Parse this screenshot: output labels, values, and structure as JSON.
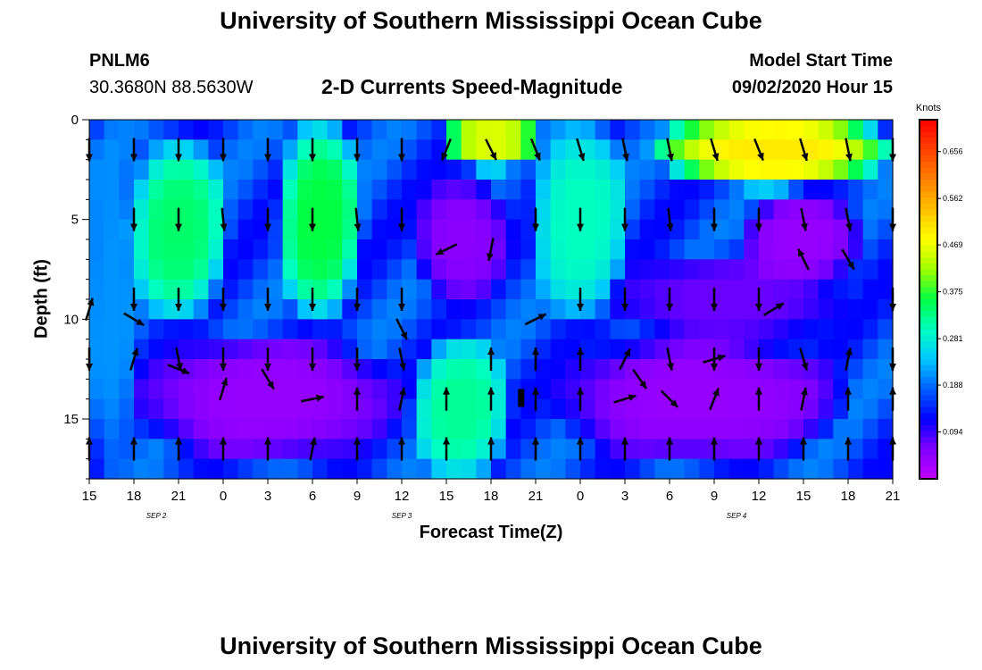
{
  "header": {
    "title": "University of Southern Mississippi Ocean Cube",
    "station_id": "PNLM6",
    "station_coords": "30.3680N 88.5630W",
    "chart_title": "2-D Currents Speed-Magnitude",
    "model_start_label": "Model Start Time",
    "model_start_value": "09/02/2020 Hour 15"
  },
  "footer": {
    "title": "University of Southern Mississippi Ocean Cube"
  },
  "chart_data": {
    "type": "heatmap",
    "title": "2-D Currents Speed-Magnitude",
    "xlabel": "Forecast Time(Z)",
    "ylabel": "Depth (ft)",
    "x_ticks": [
      "15",
      "18",
      "21",
      "0",
      "3",
      "6",
      "9",
      "12",
      "15",
      "18",
      "21",
      "0",
      "3",
      "6",
      "9",
      "12",
      "15",
      "18",
      "21"
    ],
    "date_labels": [
      {
        "label": "SEP 2",
        "hour_index": 4.5
      },
      {
        "label": "SEP 3",
        "hour_index": 21
      },
      {
        "label": "SEP 4",
        "hour_index": 43.5
      }
    ],
    "y_ticks": [
      0,
      5,
      10,
      15
    ],
    "ylim": [
      18,
      0
    ],
    "hours": 54,
    "depth_rows": 18,
    "colorbar": {
      "unit": "Knots",
      "range": [
        0,
        0.72
      ],
      "ticks": [
        "0.656",
        "0.562",
        "0.469",
        "0.375",
        "0.281",
        "0.188",
        "0.094"
      ],
      "tick_values": [
        0.656,
        0.562,
        0.469,
        0.375,
        0.281,
        0.188,
        0.094
      ],
      "colors": [
        "#c000ff",
        "#8000ff",
        "#0000ff",
        "#0060ff",
        "#00c8ff",
        "#00ffc0",
        "#00ff40",
        "#a0ff00",
        "#ffff00",
        "#ffc000",
        "#ff8000",
        "#ff4000",
        "#ff0000"
      ]
    },
    "speed_regions": [
      {
        "h0": 0,
        "h1": 3,
        "d0": 0,
        "d1": 18,
        "v": 0.21
      },
      {
        "h0": 3,
        "h1": 9,
        "d0": 1,
        "d1": 10,
        "v": 0.34
      },
      {
        "h0": 3,
        "h1": 21,
        "d0": 11,
        "d1": 17,
        "v": 0.04
      },
      {
        "h0": 13,
        "h1": 18,
        "d0": 0,
        "d1": 10,
        "v": 0.36
      },
      {
        "h0": 22,
        "h1": 28,
        "d0": 3,
        "d1": 9,
        "v": 0.05
      },
      {
        "h0": 22,
        "h1": 28,
        "d0": 11,
        "d1": 18,
        "v": 0.32
      },
      {
        "h0": 24,
        "h1": 30,
        "d0": 0,
        "d1": 2,
        "v": 0.46
      },
      {
        "h0": 30,
        "h1": 36,
        "d0": 0,
        "d1": 10,
        "v": 0.3
      },
      {
        "h0": 31,
        "h1": 51,
        "d0": 11,
        "d1": 17,
        "v": 0.04
      },
      {
        "h0": 35,
        "h1": 51,
        "d0": 7,
        "d1": 11,
        "v": 0.07
      },
      {
        "h0": 38,
        "h1": 54,
        "d0": 0,
        "d1": 3,
        "v": 0.5
      },
      {
        "h0": 44,
        "h1": 52,
        "d0": 4,
        "d1": 8,
        "v": 0.04
      }
    ],
    "arrows": [
      {
        "t": 0,
        "d": 1.5,
        "dir": [
          0,
          1
        ]
      },
      {
        "t": 3,
        "d": 1.5,
        "dir": [
          0,
          1
        ]
      },
      {
        "t": 6,
        "d": 1.5,
        "dir": [
          0,
          1
        ]
      },
      {
        "t": 9,
        "d": 1.5,
        "dir": [
          0,
          1
        ]
      },
      {
        "t": 12,
        "d": 1.5,
        "dir": [
          0,
          1
        ]
      },
      {
        "t": 15,
        "d": 1.5,
        "dir": [
          0,
          1
        ]
      },
      {
        "t": 18,
        "d": 1.5,
        "dir": [
          0,
          1
        ]
      },
      {
        "t": 21,
        "d": 1.5,
        "dir": [
          0,
          1
        ]
      },
      {
        "t": 24,
        "d": 1.5,
        "dir": [
          -0.4,
          1
        ]
      },
      {
        "t": 27,
        "d": 1.5,
        "dir": [
          0.5,
          1
        ]
      },
      {
        "t": 30,
        "d": 1.5,
        "dir": [
          0.4,
          1
        ]
      },
      {
        "t": 33,
        "d": 1.5,
        "dir": [
          0.3,
          1
        ]
      },
      {
        "t": 36,
        "d": 1.5,
        "dir": [
          0.2,
          1
        ]
      },
      {
        "t": 39,
        "d": 1.5,
        "dir": [
          0.2,
          1
        ]
      },
      {
        "t": 42,
        "d": 1.5,
        "dir": [
          0.3,
          1
        ]
      },
      {
        "t": 45,
        "d": 1.5,
        "dir": [
          0.4,
          1
        ]
      },
      {
        "t": 48,
        "d": 1.5,
        "dir": [
          0.3,
          1
        ]
      },
      {
        "t": 51,
        "d": 1.5,
        "dir": [
          0.2,
          1
        ]
      },
      {
        "t": 54,
        "d": 1.5,
        "dir": [
          0,
          1
        ]
      },
      {
        "t": 3,
        "d": 5,
        "dir": [
          0,
          1
        ]
      },
      {
        "t": 6,
        "d": 5,
        "dir": [
          0,
          1
        ]
      },
      {
        "t": 9,
        "d": 5,
        "dir": [
          0.1,
          1
        ]
      },
      {
        "t": 12,
        "d": 5,
        "dir": [
          0,
          1
        ]
      },
      {
        "t": 15,
        "d": 5,
        "dir": [
          0,
          1
        ]
      },
      {
        "t": 18,
        "d": 5,
        "dir": [
          0.1,
          1
        ]
      },
      {
        "t": 21,
        "d": 5,
        "dir": [
          0,
          1
        ]
      },
      {
        "t": 24,
        "d": 6.5,
        "dir": [
          -1,
          0.5
        ]
      },
      {
        "t": 27,
        "d": 6.5,
        "dir": [
          -0.2,
          1
        ]
      },
      {
        "t": 30,
        "d": 5,
        "dir": [
          0,
          1
        ]
      },
      {
        "t": 33,
        "d": 5,
        "dir": [
          0,
          1
        ]
      },
      {
        "t": 36,
        "d": 5,
        "dir": [
          0,
          1
        ]
      },
      {
        "t": 39,
        "d": 5,
        "dir": [
          0.1,
          1
        ]
      },
      {
        "t": 42,
        "d": 5,
        "dir": [
          0,
          1
        ]
      },
      {
        "t": 45,
        "d": 5,
        "dir": [
          0,
          1
        ]
      },
      {
        "t": 48,
        "d": 5,
        "dir": [
          0.2,
          1
        ]
      },
      {
        "t": 51,
        "d": 5,
        "dir": [
          0.2,
          1
        ]
      },
      {
        "t": 54,
        "d": 5,
        "dir": [
          0,
          1
        ]
      },
      {
        "t": 0,
        "d": 9.5,
        "dir": [
          0.3,
          -1
        ]
      },
      {
        "t": 3,
        "d": 9,
        "dir": [
          0,
          1
        ]
      },
      {
        "t": 6,
        "d": 9,
        "dir": [
          0,
          1
        ]
      },
      {
        "t": 9,
        "d": 9,
        "dir": [
          0,
          1
        ]
      },
      {
        "t": 12,
        "d": 9,
        "dir": [
          0,
          1
        ]
      },
      {
        "t": 15,
        "d": 9,
        "dir": [
          0,
          1
        ]
      },
      {
        "t": 18,
        "d": 9,
        "dir": [
          0,
          1
        ]
      },
      {
        "t": 21,
        "d": 9,
        "dir": [
          0,
          1
        ]
      },
      {
        "t": 30,
        "d": 10,
        "dir": [
          1,
          -0.5
        ]
      },
      {
        "t": 33,
        "d": 9,
        "dir": [
          0,
          1
        ]
      },
      {
        "t": 36,
        "d": 9,
        "dir": [
          0,
          1
        ]
      },
      {
        "t": 39,
        "d": 9,
        "dir": [
          0,
          1
        ]
      },
      {
        "t": 42,
        "d": 9,
        "dir": [
          0,
          1
        ]
      },
      {
        "t": 45,
        "d": 9,
        "dir": [
          0,
          1
        ]
      },
      {
        "t": 46,
        "d": 9.5,
        "dir": [
          1,
          -0.6
        ]
      },
      {
        "t": 48,
        "d": 7,
        "dir": [
          -0.5,
          -1
        ]
      },
      {
        "t": 51,
        "d": 7,
        "dir": [
          0.6,
          1
        ]
      },
      {
        "t": 54,
        "d": 9,
        "dir": [
          0,
          1
        ]
      },
      {
        "t": 0,
        "d": 12,
        "dir": [
          0,
          1
        ]
      },
      {
        "t": 3,
        "d": 12,
        "dir": [
          0.3,
          -1
        ]
      },
      {
        "t": 3,
        "d": 10,
        "dir": [
          1,
          0.6
        ]
      },
      {
        "t": 6,
        "d": 12,
        "dir": [
          0.2,
          1
        ]
      },
      {
        "t": 9,
        "d": 12,
        "dir": [
          0,
          1
        ]
      },
      {
        "t": 12,
        "d": 12,
        "dir": [
          0,
          1
        ]
      },
      {
        "t": 15,
        "d": 12,
        "dir": [
          0,
          1
        ]
      },
      {
        "t": 18,
        "d": 12,
        "dir": [
          0,
          1
        ]
      },
      {
        "t": 21,
        "d": 12,
        "dir": [
          0.2,
          1
        ]
      },
      {
        "t": 21,
        "d": 10.5,
        "dir": [
          0.5,
          1
        ]
      },
      {
        "t": 27,
        "d": 12,
        "dir": [
          0,
          -1
        ]
      },
      {
        "t": 30,
        "d": 12,
        "dir": [
          0,
          -1
        ]
      },
      {
        "t": 33,
        "d": 12,
        "dir": [
          0,
          -1
        ]
      },
      {
        "t": 36,
        "d": 12,
        "dir": [
          0.5,
          -1
        ]
      },
      {
        "t": 39,
        "d": 12,
        "dir": [
          0.2,
          1
        ]
      },
      {
        "t": 42,
        "d": 12,
        "dir": [
          0,
          1
        ]
      },
      {
        "t": 45,
        "d": 12,
        "dir": [
          0,
          1
        ]
      },
      {
        "t": 48,
        "d": 12,
        "dir": [
          0.3,
          1
        ]
      },
      {
        "t": 51,
        "d": 12,
        "dir": [
          0.2,
          -1
        ]
      },
      {
        "t": 54,
        "d": 12,
        "dir": [
          0,
          1
        ]
      },
      {
        "t": 6,
        "d": 12.5,
        "dir": [
          1,
          0.4
        ]
      },
      {
        "t": 9,
        "d": 13.5,
        "dir": [
          0.3,
          -1
        ]
      },
      {
        "t": 12,
        "d": 13,
        "dir": [
          0.6,
          1
        ]
      },
      {
        "t": 15,
        "d": 14,
        "dir": [
          1,
          -0.2
        ]
      },
      {
        "t": 18,
        "d": 14,
        "dir": [
          0,
          -1
        ]
      },
      {
        "t": 21,
        "d": 14,
        "dir": [
          0.2,
          -1
        ]
      },
      {
        "t": 24,
        "d": 14,
        "dir": [
          0,
          -1
        ]
      },
      {
        "t": 27,
        "d": 14,
        "dir": [
          0,
          -1
        ]
      },
      {
        "t": 30,
        "d": 14,
        "dir": [
          0,
          -1
        ]
      },
      {
        "t": 33,
        "d": 14,
        "dir": [
          0,
          -1
        ]
      },
      {
        "t": 36,
        "d": 14,
        "dir": [
          1,
          -0.3
        ]
      },
      {
        "t": 37,
        "d": 13,
        "dir": [
          0.7,
          1
        ]
      },
      {
        "t": 39,
        "d": 14,
        "dir": [
          1,
          1
        ]
      },
      {
        "t": 42,
        "d": 14,
        "dir": [
          0.4,
          -1
        ]
      },
      {
        "t": 42,
        "d": 12,
        "dir": [
          1,
          -0.3
        ]
      },
      {
        "t": 45,
        "d": 14,
        "dir": [
          0,
          -1
        ]
      },
      {
        "t": 48,
        "d": 14,
        "dir": [
          0.2,
          -1
        ]
      },
      {
        "t": 51,
        "d": 14,
        "dir": [
          0,
          -1
        ]
      },
      {
        "t": 54,
        "d": 14,
        "dir": [
          0,
          -1
        ]
      },
      {
        "t": 0,
        "d": 16.5,
        "dir": [
          0,
          -1
        ]
      },
      {
        "t": 3,
        "d": 16.5,
        "dir": [
          0,
          -1
        ]
      },
      {
        "t": 6,
        "d": 16.5,
        "dir": [
          0,
          -1
        ]
      },
      {
        "t": 9,
        "d": 16.5,
        "dir": [
          0,
          -1
        ]
      },
      {
        "t": 12,
        "d": 16.5,
        "dir": [
          0,
          -1
        ]
      },
      {
        "t": 15,
        "d": 16.5,
        "dir": [
          0.2,
          -1
        ]
      },
      {
        "t": 18,
        "d": 16.5,
        "dir": [
          0,
          -1
        ]
      },
      {
        "t": 21,
        "d": 16.5,
        "dir": [
          0,
          -1
        ]
      },
      {
        "t": 24,
        "d": 16.5,
        "dir": [
          0,
          -1
        ]
      },
      {
        "t": 27,
        "d": 16.5,
        "dir": [
          0,
          -1
        ]
      },
      {
        "t": 30,
        "d": 16.5,
        "dir": [
          0,
          -1
        ]
      },
      {
        "t": 33,
        "d": 16.5,
        "dir": [
          0,
          -1
        ]
      },
      {
        "t": 36,
        "d": 16.5,
        "dir": [
          0,
          -1
        ]
      },
      {
        "t": 39,
        "d": 16.5,
        "dir": [
          0,
          -1
        ]
      },
      {
        "t": 42,
        "d": 16.5,
        "dir": [
          0,
          -1
        ]
      },
      {
        "t": 45,
        "d": 16.5,
        "dir": [
          0,
          -1
        ]
      },
      {
        "t": 48,
        "d": 16.5,
        "dir": [
          0,
          -1
        ]
      },
      {
        "t": 51,
        "d": 16.5,
        "dir": [
          0,
          -1
        ]
      },
      {
        "t": 54,
        "d": 16.5,
        "dir": [
          0,
          -1
        ]
      }
    ]
  }
}
